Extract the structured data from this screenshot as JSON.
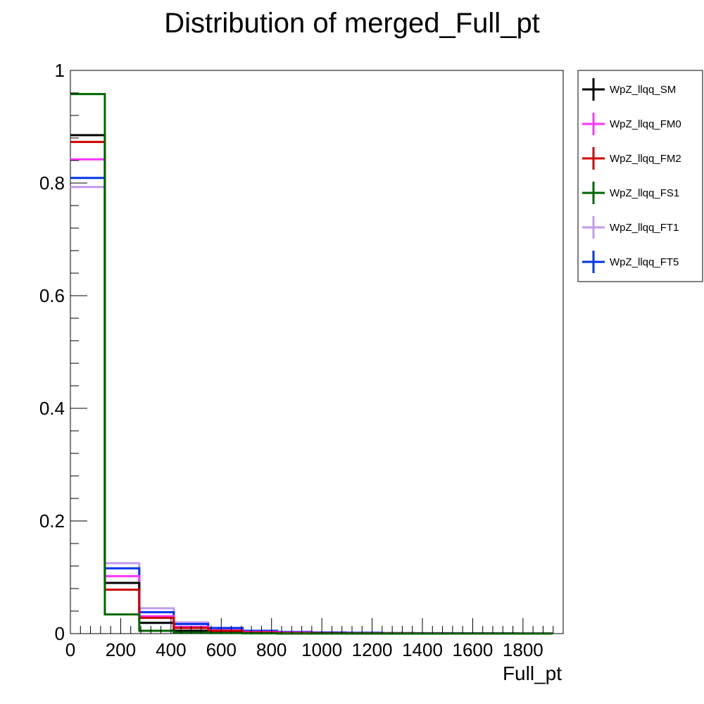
{
  "chart_data": {
    "type": "histogram-step",
    "title": "Distribution of merged_Full_pt",
    "xlabel": "Full_pt",
    "ylabel": "",
    "xlim": [
      0,
      1960
    ],
    "ylim": [
      0,
      1.0
    ],
    "bin_width": 137,
    "x_ticks": [
      0,
      200,
      400,
      600,
      800,
      1000,
      1200,
      1400,
      1600,
      1800
    ],
    "x_tick_labels": [
      "0",
      "200",
      "400",
      "600",
      "800",
      "1000",
      "1200",
      "1400",
      "1600",
      "1800"
    ],
    "y_ticks": [
      0,
      0.2,
      0.4,
      0.6,
      0.8,
      1
    ],
    "y_tick_labels": [
      "0",
      "0.2",
      "0.4",
      "0.6",
      "0.8",
      "1"
    ],
    "grid": false,
    "legend_position": "top-right-outside",
    "series": [
      {
        "name": "WpZ_llqq_SM",
        "color": "#000000",
        "values": [
          0.885,
          0.09,
          0.019,
          0.005,
          0.002,
          0.001,
          0.0005,
          0.0003,
          0.0002,
          0.0002,
          0.0001,
          0.0001,
          0.0001,
          0.0
        ]
      },
      {
        "name": "WpZ_llqq_FM0",
        "color": "#ff33ff",
        "values": [
          0.842,
          0.102,
          0.031,
          0.012,
          0.006,
          0.003,
          0.002,
          0.001,
          0.0008,
          0.0005,
          0.0004,
          0.0003,
          0.0002,
          0.0001
        ]
      },
      {
        "name": "WpZ_llqq_FM2",
        "color": "#cc0000",
        "values": [
          0.873,
          0.078,
          0.028,
          0.01,
          0.005,
          0.002,
          0.001,
          0.0008,
          0.0005,
          0.0003,
          0.0002,
          0.0002,
          0.0001,
          0.0001
        ]
      },
      {
        "name": "WpZ_llqq_FS1",
        "color": "#006600",
        "values": [
          0.958,
          0.034,
          0.005,
          0.002,
          0.001,
          0.0005,
          0.0002,
          0.0001,
          0.0001,
          0.0,
          0.0,
          0.0,
          0.0,
          0.0
        ]
      },
      {
        "name": "WpZ_llqq_FT1",
        "color": "#c39bee",
        "values": [
          0.793,
          0.125,
          0.045,
          0.02,
          0.009,
          0.004,
          0.002,
          0.0015,
          0.001,
          0.0008,
          0.0005,
          0.0004,
          0.0003,
          0.0002
        ]
      },
      {
        "name": "WpZ_llqq_FT5",
        "color": "#0033ee",
        "values": [
          0.809,
          0.116,
          0.038,
          0.017,
          0.01,
          0.005,
          0.003,
          0.002,
          0.0015,
          0.001,
          0.0008,
          0.0006,
          0.0004,
          0.0003
        ]
      }
    ]
  }
}
